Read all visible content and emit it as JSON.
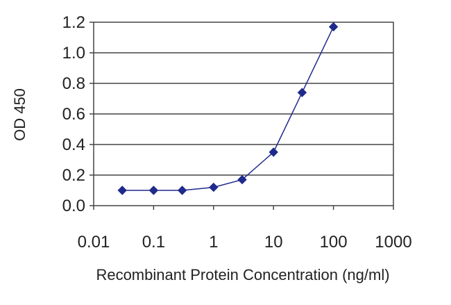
{
  "chart_data": {
    "type": "line",
    "title": "",
    "xlabel": "Recombinant Protein Concentration (ng/ml)",
    "ylabel": "OD 450",
    "xscale": "log",
    "xlim": [
      0.01,
      1000
    ],
    "ylim": [
      0.0,
      1.2
    ],
    "x_ticks": [
      0.01,
      0.1,
      1,
      10,
      100,
      1000
    ],
    "x_tick_labels": [
      "0.01",
      "0.1",
      "1",
      "10",
      "100",
      "1000"
    ],
    "y_ticks": [
      0.0,
      0.2,
      0.4,
      0.6,
      0.8,
      1.0,
      1.2
    ],
    "y_tick_labels": [
      "0.0",
      "0.2",
      "0.4",
      "0.6",
      "0.8",
      "1.0",
      "1.2"
    ],
    "grid": "horizontal",
    "legend": "none",
    "marker": "diamond",
    "series": [
      {
        "x": [
          0.03,
          0.1,
          0.3,
          1,
          3,
          10,
          30,
          100
        ],
        "y": [
          0.1,
          0.1,
          0.1,
          0.12,
          0.17,
          0.35,
          0.74,
          1.17
        ]
      }
    ],
    "colors": {
      "series": "#1f2a8c",
      "grid": "#444444",
      "axis": "#444444"
    }
  }
}
